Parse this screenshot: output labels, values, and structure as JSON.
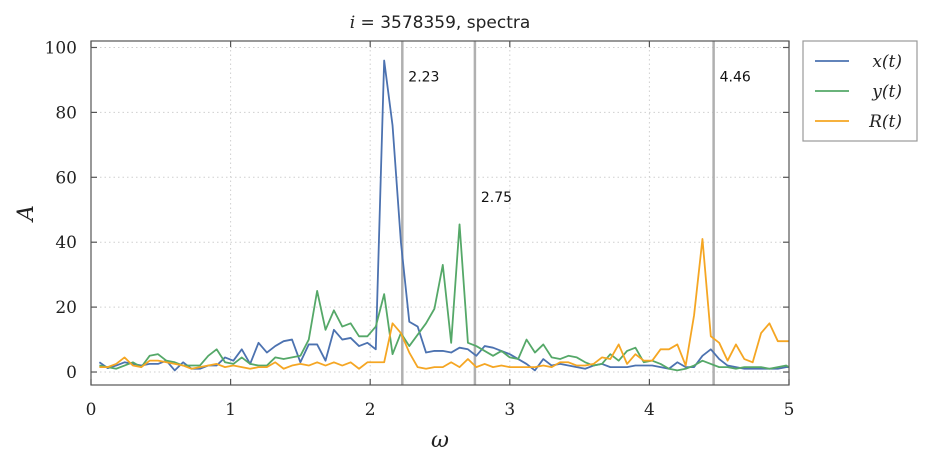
{
  "chart_data": {
    "type": "line",
    "title_var": "i",
    "title_eq": " = 3578359, ",
    "title_suffix": "spectra",
    "xlabel": "ω",
    "ylabel": "A",
    "xlim": [
      0,
      5
    ],
    "ylim": [
      -4,
      102
    ],
    "xticks": [
      0,
      1,
      2,
      3,
      4,
      5
    ],
    "xtick_labels": [
      "0",
      "1",
      "2",
      "3",
      "4",
      "5"
    ],
    "yticks": [
      0,
      20,
      40,
      60,
      80,
      100
    ],
    "ytick_labels": [
      "0",
      "20",
      "40",
      "60",
      "80",
      "100"
    ],
    "grid": true,
    "legend_position": "outside-top-right",
    "vlines": [
      {
        "x": 2.23,
        "label": "2.23",
        "label_y": 91
      },
      {
        "x": 2.75,
        "label": "2.75",
        "label_y": 54
      },
      {
        "x": 4.46,
        "label": "4.46",
        "label_y": 91
      }
    ],
    "vline_color": "#b0b0b0",
    "x": [
      0.06,
      0.12,
      0.18,
      0.24,
      0.3,
      0.36,
      0.42,
      0.48,
      0.54,
      0.6,
      0.66,
      0.72,
      0.78,
      0.84,
      0.9,
      0.96,
      1.02,
      1.08,
      1.14,
      1.2,
      1.26,
      1.32,
      1.38,
      1.44,
      1.5,
      1.56,
      1.62,
      1.68,
      1.74,
      1.8,
      1.86,
      1.92,
      1.98,
      2.04,
      2.1,
      2.16,
      2.22,
      2.28,
      2.34,
      2.4,
      2.46,
      2.52,
      2.58,
      2.64,
      2.7,
      2.76,
      2.82,
      2.88,
      2.94,
      3.0,
      3.06,
      3.12,
      3.18,
      3.24,
      3.3,
      3.36,
      3.42,
      3.48,
      3.54,
      3.6,
      3.66,
      3.72,
      3.78,
      3.84,
      3.9,
      3.96,
      4.02,
      4.08,
      4.14,
      4.2,
      4.26,
      4.32,
      4.38,
      4.44,
      4.5,
      4.56,
      4.62,
      4.68,
      4.74,
      4.8,
      4.86,
      4.92,
      4.98,
      5.0
    ],
    "series": [
      {
        "name": "x(t)",
        "color": "#4c72b0",
        "values": [
          3,
          1.2,
          2,
          3,
          2.5,
          2,
          2.5,
          2.5,
          3.5,
          0.5,
          3,
          1,
          1,
          2,
          2,
          4.5,
          3.5,
          7,
          2.5,
          9,
          6,
          8,
          9.5,
          10,
          3,
          8.5,
          8.5,
          3.5,
          13,
          10,
          10.5,
          8,
          9,
          7,
          96,
          76,
          40,
          15.5,
          14,
          6,
          6.5,
          6.5,
          6,
          7.5,
          7,
          5,
          8,
          7.5,
          6.5,
          5.5,
          4,
          2.5,
          0.5,
          4,
          2,
          2.5,
          2,
          1.5,
          1,
          2,
          2.5,
          1.5,
          1.5,
          1.5,
          2,
          2,
          2,
          1.5,
          1,
          3,
          1.5,
          1.5,
          5,
          7,
          4,
          2,
          1.5,
          1,
          1,
          1,
          1,
          1,
          1.5,
          1.5
        ]
      },
      {
        "name": "y(t)",
        "color": "#55a868",
        "values": [
          2,
          1.5,
          1,
          2,
          3,
          1.5,
          5,
          5.5,
          3.5,
          3,
          2,
          2,
          2,
          5,
          7,
          3,
          2.5,
          4.5,
          2.5,
          2,
          2,
          4.5,
          4,
          4.5,
          5,
          10,
          25,
          13,
          19,
          14,
          15,
          11,
          11,
          14,
          24,
          5.5,
          12,
          8,
          11.5,
          15,
          19.5,
          33,
          9,
          45.5,
          9,
          8,
          6.5,
          5,
          6.5,
          4.5,
          4,
          10,
          6,
          8.5,
          4.5,
          4,
          5,
          4.5,
          3,
          2,
          2.5,
          5.5,
          3.5,
          6.5,
          7.5,
          3,
          3.5,
          2.5,
          1,
          0.5,
          1,
          2,
          3.5,
          2.5,
          1.5,
          1.5,
          1,
          1.5,
          1.5,
          1.5,
          1,
          1.5,
          2,
          1.5
        ]
      },
      {
        "name": "R(t)",
        "color": "#f5a623",
        "values": [
          1.5,
          1.5,
          2.5,
          4.5,
          2,
          1.5,
          3.5,
          3.5,
          3,
          2.5,
          2,
          1,
          1.5,
          2,
          2.5,
          1.5,
          2,
          1.5,
          1,
          1.5,
          1.5,
          3,
          1,
          2,
          2.5,
          2,
          3,
          2,
          3,
          2,
          3,
          1,
          3,
          3,
          3,
          15,
          12,
          6,
          1.5,
          1,
          1.5,
          1.5,
          3,
          1.5,
          4,
          1.5,
          2.5,
          1.5,
          2,
          1.5,
          1.5,
          1.5,
          1.5,
          2,
          1.5,
          3,
          3,
          2,
          2,
          2.5,
          4.5,
          4,
          8.5,
          2.5,
          5.5,
          3.5,
          3.5,
          7,
          7,
          8.5,
          2,
          17.5,
          41,
          11,
          9,
          3.5,
          8.5,
          4,
          3,
          12,
          15,
          9.5,
          9.5,
          9.5
        ]
      }
    ]
  }
}
